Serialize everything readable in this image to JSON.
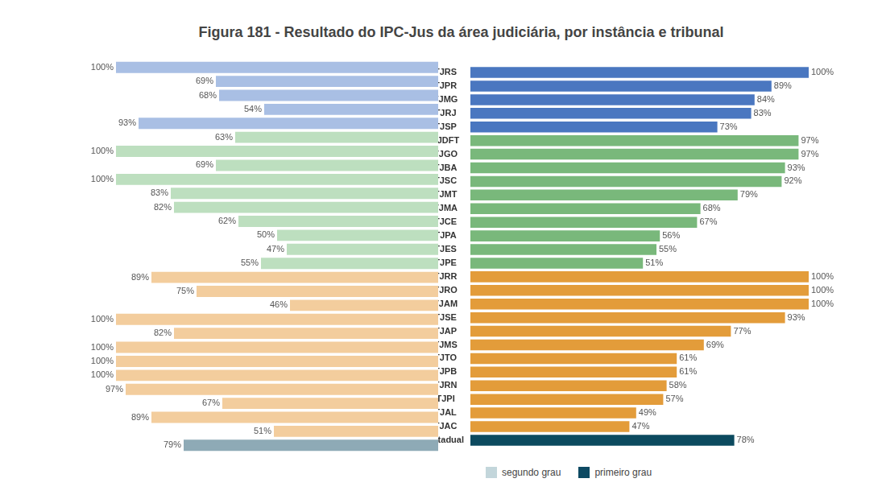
{
  "chart_data": {
    "type": "bar",
    "title": "Figura 181 - Resultado do IPC-Jus da área judiciária, por instância e tribunal",
    "orientation": "horizontal",
    "categories": [
      "TJRS",
      "TJPR",
      "TJMG",
      "TJRJ",
      "TJSP",
      "TJDFT",
      "TJGO",
      "TJBA",
      "TJSC",
      "TJMT",
      "TJMA",
      "TJCE",
      "TJPA",
      "TJES",
      "TJPE",
      "TJRR",
      "TJRO",
      "TJAM",
      "TJSE",
      "TJAP",
      "TJMS",
      "TJTO",
      "TJPB",
      "TJRN",
      "TJPI",
      "TJAL",
      "TJAC",
      "Estadual"
    ],
    "series": [
      {
        "name": "segundo grau",
        "color": "#c3d6db",
        "colors": [
          "#a9bfe4",
          "#a9bfe4",
          "#a9bfe4",
          "#a9bfe4",
          "#a9bfe4",
          "#bddfbf",
          "#bddfbf",
          "#bddfbf",
          "#bddfbf",
          "#bddfbf",
          "#bddfbf",
          "#bddfbf",
          "#bddfbf",
          "#bddfbf",
          "#bddfbf",
          "#f3cd9d",
          "#f3cd9d",
          "#f3cd9d",
          "#f3cd9d",
          "#f3cd9d",
          "#f3cd9d",
          "#f3cd9d",
          "#f3cd9d",
          "#f3cd9d",
          "#f3cd9d",
          "#f3cd9d",
          "#f3cd9d",
          "#8eaab6"
        ],
        "values": [
          100,
          69,
          68,
          54,
          93,
          63,
          100,
          69,
          100,
          83,
          82,
          62,
          50,
          47,
          55,
          89,
          75,
          46,
          100,
          82,
          100,
          100,
          100,
          97,
          67,
          89,
          51,
          79
        ],
        "value_labels": [
          "100%",
          "69%",
          "68%",
          "54%",
          "93%",
          "63%",
          "100%",
          "69%",
          "100%",
          "83%",
          "82%",
          "62%",
          "50%",
          "47%",
          "55%",
          "89%",
          "75%",
          "46%",
          "100%",
          "82%",
          "100%",
          "100%",
          "100%",
          "97%",
          "67%",
          "89%",
          "51%",
          "79%"
        ]
      },
      {
        "name": "primeiro grau",
        "color": "#0d4a63",
        "colors": [
          "#4a77c0",
          "#4a77c0",
          "#4a77c0",
          "#4a77c0",
          "#4a77c0",
          "#79b87b",
          "#79b87b",
          "#79b87b",
          "#79b87b",
          "#79b87b",
          "#79b87b",
          "#79b87b",
          "#79b87b",
          "#79b87b",
          "#79b87b",
          "#e39c3a",
          "#e39c3a",
          "#e39c3a",
          "#e39c3a",
          "#e39c3a",
          "#e39c3a",
          "#e39c3a",
          "#e39c3a",
          "#e39c3a",
          "#e39c3a",
          "#e39c3a",
          "#e39c3a",
          "#0c4a5f"
        ],
        "values": [
          100,
          89,
          84,
          83,
          73,
          97,
          97,
          93,
          92,
          79,
          68,
          67,
          56,
          55,
          51,
          100,
          100,
          100,
          93,
          77,
          69,
          61,
          61,
          58,
          57,
          49,
          47,
          78
        ],
        "value_labels": [
          "100%",
          "89%",
          "84%",
          "83%",
          "73%",
          "97%",
          "97%",
          "93%",
          "92%",
          "79%",
          "68%",
          "67%",
          "56%",
          "55%",
          "51%",
          "100%",
          "100%",
          "100%",
          "93%",
          "77%",
          "69%",
          "61%",
          "61%",
          "58%",
          "57%",
          "49%",
          "47%",
          "78%"
        ]
      }
    ],
    "xlim": [
      0,
      100
    ],
    "grid": false,
    "data_labels": true,
    "tick_labels": "y",
    "legend": "bottom"
  }
}
